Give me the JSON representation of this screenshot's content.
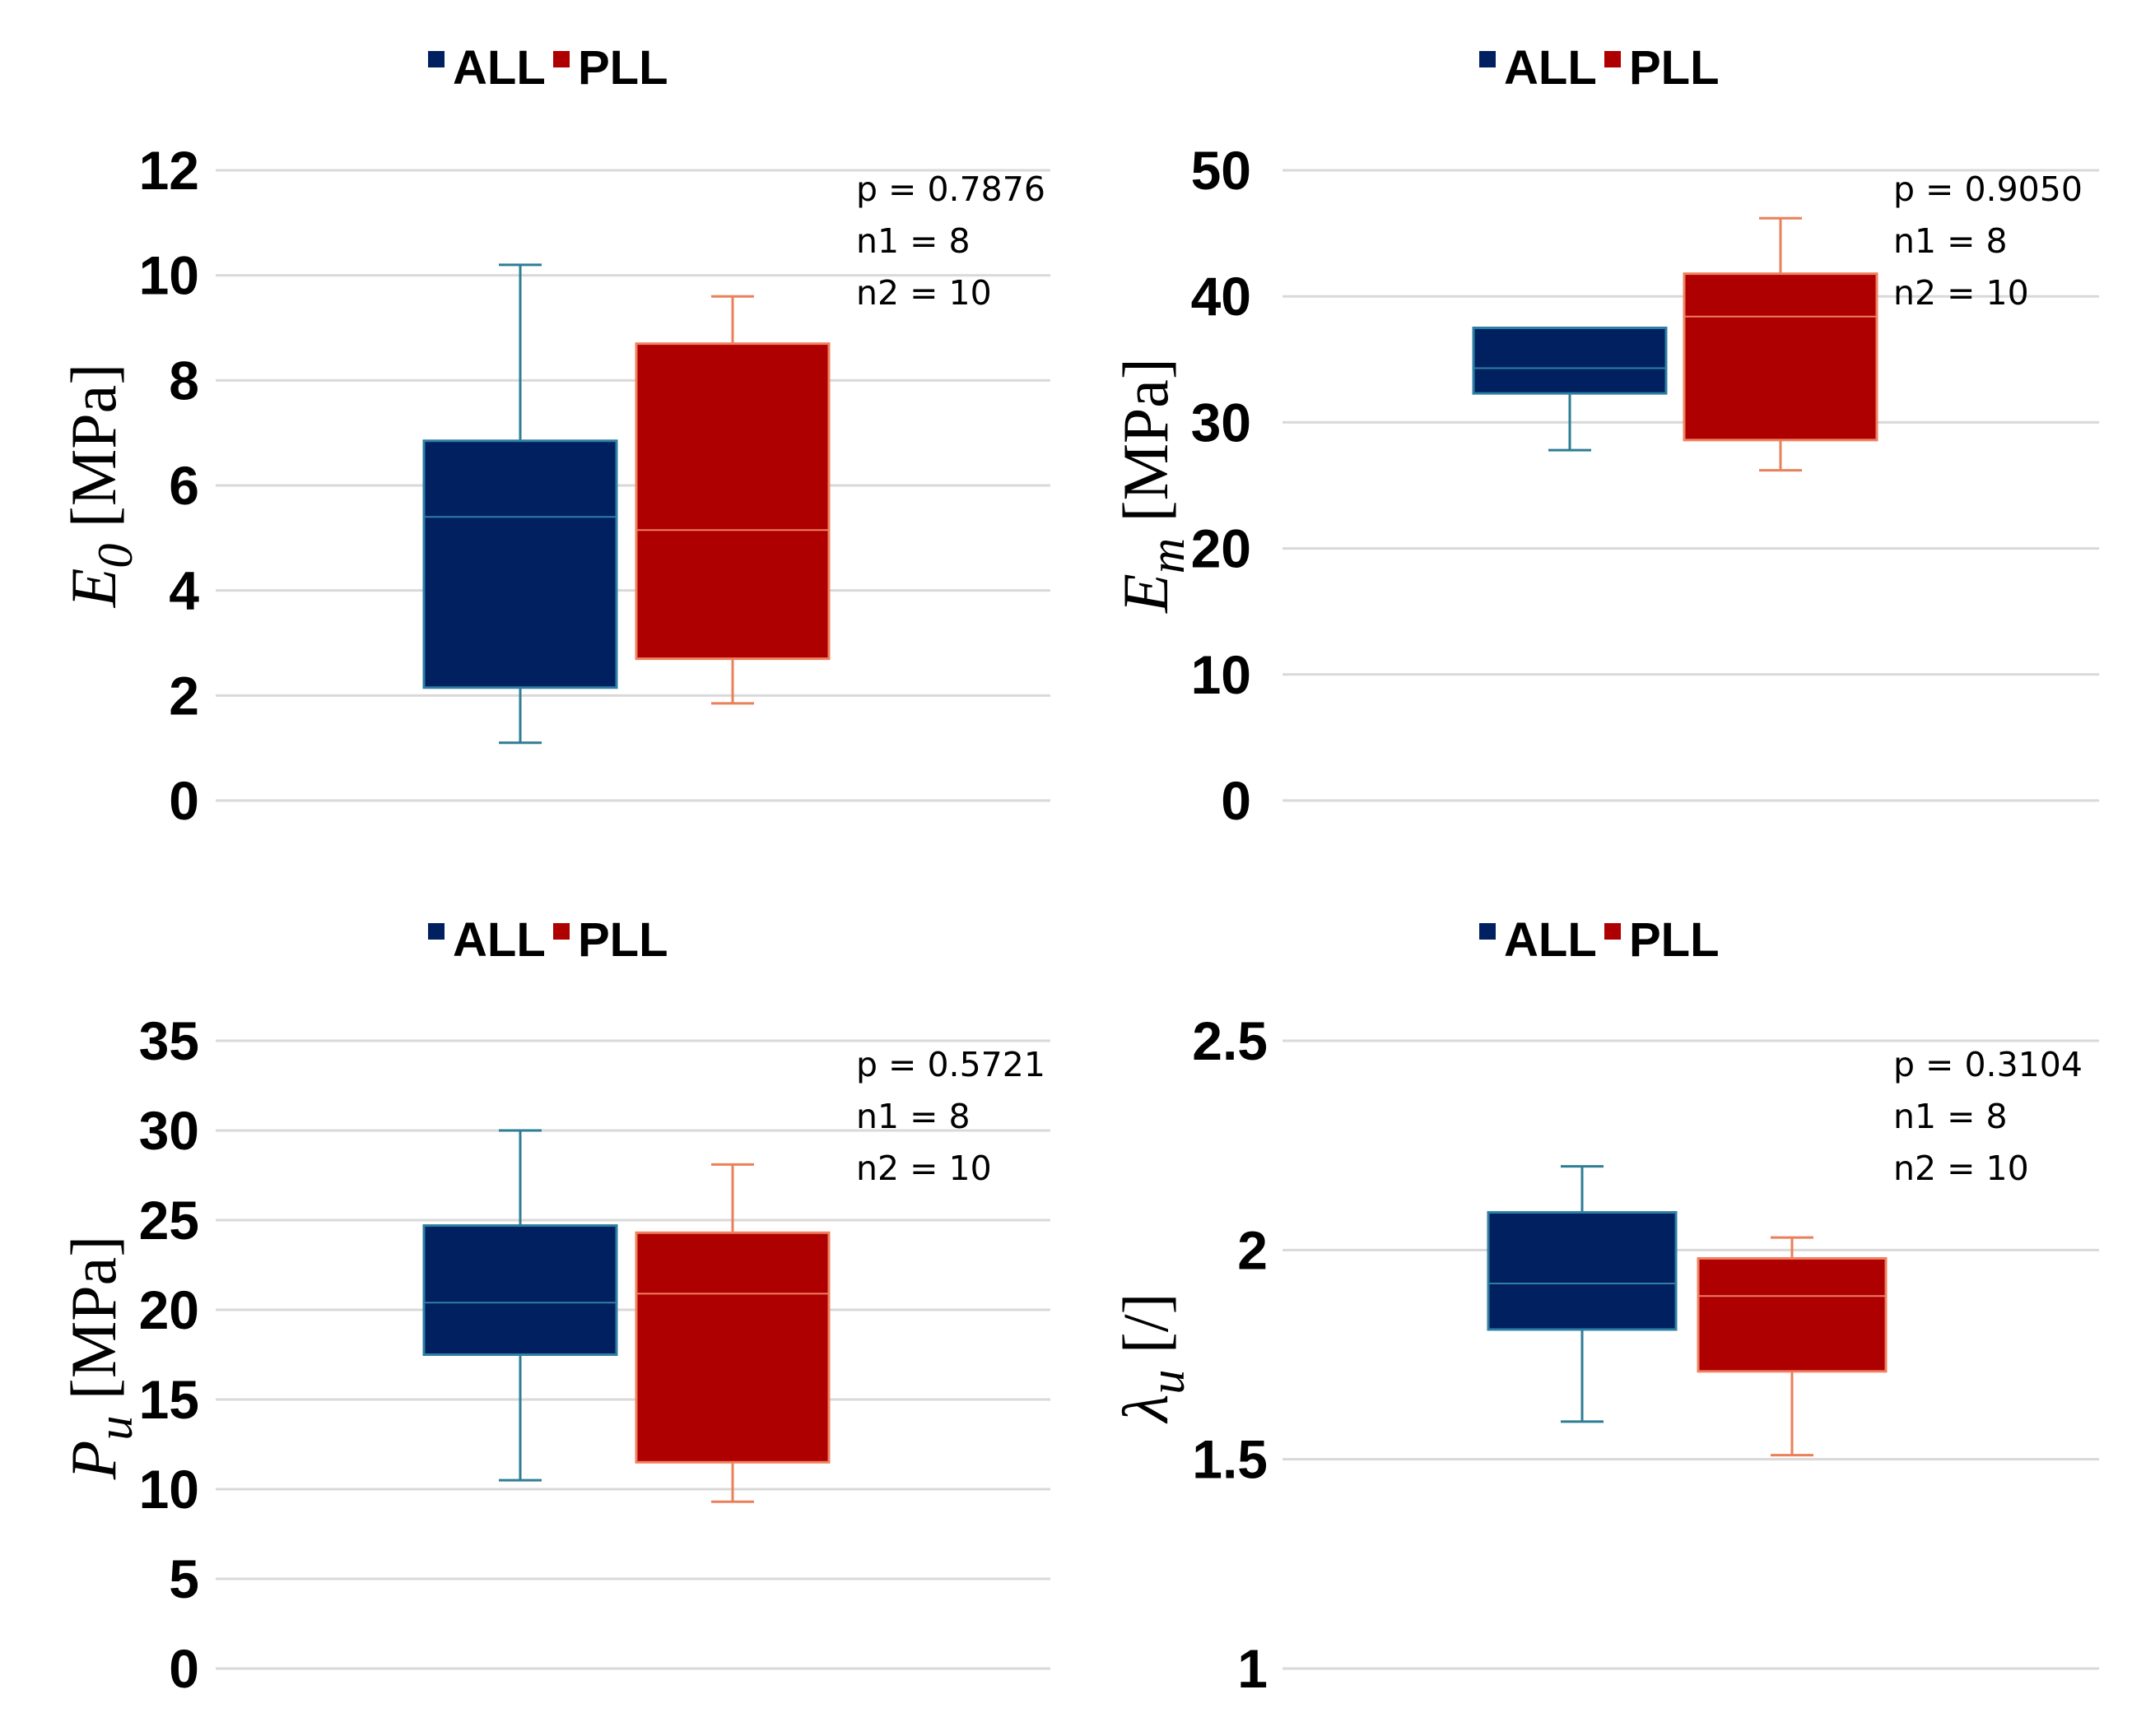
{
  "colors": {
    "ALL_fill": "#002060",
    "ALL_edge": "#2e7fa3",
    "ALL_whisker": "#2e7d95",
    "PLL_fill": "#ae0000",
    "PLL_edge": "#f08060",
    "PLL_whisker": "#e9805a"
  },
  "chart_data": [
    {
      "type": "box",
      "id": "E0",
      "legend": [
        "ALL",
        "PLL"
      ],
      "ylabel_symbol": "E",
      "ylabel_subscript": "0",
      "ylabel_unit": "[MPa]",
      "ylim": [
        0,
        12
      ],
      "yticks": [
        "0",
        "2",
        "4",
        "6",
        "8",
        "10",
        "12"
      ],
      "annotation": [
        "p = 0.7876",
        "n1 = 8",
        "n2 = 10"
      ],
      "series": [
        {
          "name": "ALL",
          "min": 1.1,
          "q1": 2.15,
          "median": 5.4,
          "q3": 6.85,
          "max": 10.2
        },
        {
          "name": "PLL",
          "min": 1.85,
          "q1": 2.7,
          "median": 5.15,
          "q3": 8.7,
          "max": 9.6
        }
      ]
    },
    {
      "type": "box",
      "id": "Em",
      "legend": [
        "ALL",
        "PLL"
      ],
      "ylabel_symbol": "E",
      "ylabel_subscript": "m",
      "ylabel_unit": "[MPa]",
      "ylim": [
        0,
        50
      ],
      "yticks": [
        "0",
        "10",
        "20",
        "30",
        "40",
        "50"
      ],
      "annotation": [
        "p = 0.9050",
        "n1 = 8",
        "n2 = 10"
      ],
      "series": [
        {
          "name": "ALL",
          "min": 27.8,
          "q1": 32.3,
          "median": 34.3,
          "q3": 37.5,
          "max": 37.5
        },
        {
          "name": "PLL",
          "min": 26.2,
          "q1": 28.6,
          "median": 38.4,
          "q3": 41.8,
          "max": 46.2
        }
      ]
    },
    {
      "type": "box",
      "id": "Pu",
      "legend": [
        "ALL",
        "PLL"
      ],
      "ylabel_symbol": "P",
      "ylabel_subscript": "u",
      "ylabel_unit": "[MPa]",
      "ylim": [
        0,
        35
      ],
      "yticks": [
        "0",
        "5",
        "10",
        "15",
        "20",
        "25",
        "30",
        "35"
      ],
      "annotation": [
        "p = 0.5721",
        "n1 = 8",
        "n2 = 10"
      ],
      "series": [
        {
          "name": "ALL",
          "min": 10.5,
          "q1": 17.5,
          "median": 20.4,
          "q3": 24.7,
          "max": 30.0
        },
        {
          "name": "PLL",
          "min": 9.3,
          "q1": 11.5,
          "median": 20.9,
          "q3": 24.3,
          "max": 28.1
        }
      ]
    },
    {
      "type": "box",
      "id": "lambda_u",
      "legend": [
        "ALL",
        "PLL"
      ],
      "ylabel_symbol": "λ",
      "ylabel_subscript": "u",
      "ylabel_unit": "[/]",
      "ylim": [
        1,
        2.5
      ],
      "yticks": [
        "1",
        "1.5",
        "2",
        "2.5"
      ],
      "annotation": [
        "p = 0.3104",
        "n1 = 8",
        "n2 = 10"
      ],
      "series": [
        {
          "name": "ALL",
          "min": 1.59,
          "q1": 1.81,
          "median": 1.92,
          "q3": 2.09,
          "max": 2.2
        },
        {
          "name": "PLL",
          "min": 1.51,
          "q1": 1.71,
          "median": 1.89,
          "q3": 1.98,
          "max": 2.03
        }
      ]
    }
  ]
}
